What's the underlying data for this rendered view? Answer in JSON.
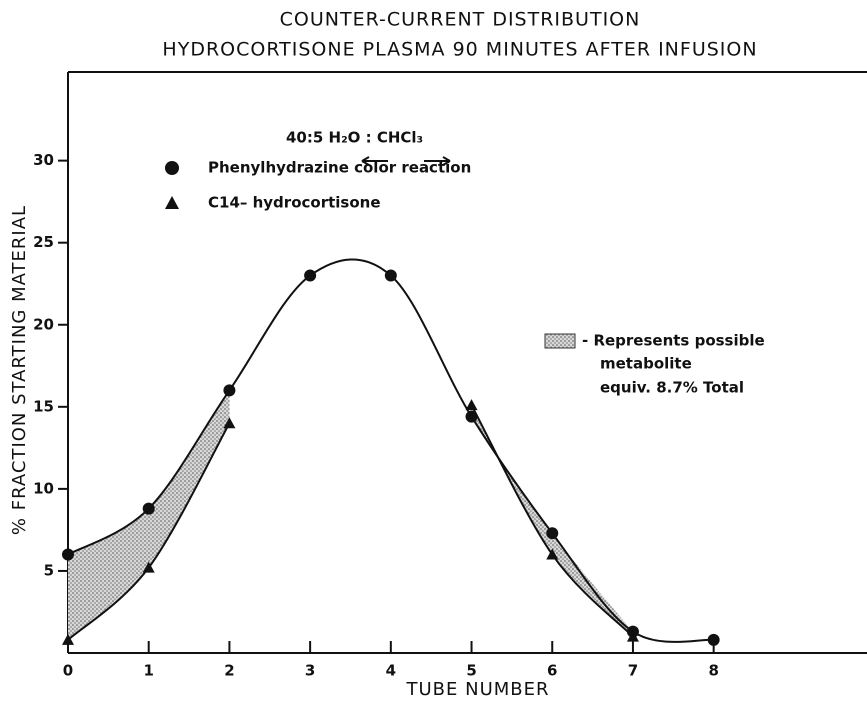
{
  "chart_data": {
    "type": "line",
    "title": "COUNTER-CURRENT DISTRIBUTION",
    "subtitle": "HYDROCORTISONE PLASMA 90 MINUTES AFTER INFUSION",
    "x_label": "TUBE NUMBER",
    "y_label": "% FRACTION STARTING MATERIAL",
    "x": [
      0,
      1,
      2,
      3,
      4,
      5,
      6,
      7,
      8
    ],
    "series": [
      {
        "name": "Phenylhydrazine color reaction",
        "marker": "circle",
        "color": "#111111",
        "values": [
          6,
          8.8,
          16,
          23,
          23,
          14.4,
          7.3,
          1.3,
          0.8
        ]
      },
      {
        "name": "C14– hydrocortisone",
        "marker": "triangle",
        "color": "#111111",
        "values": [
          0.8,
          5.2,
          14,
          null,
          null,
          15.1,
          6,
          1,
          null
        ]
      }
    ],
    "annotations": [
      "40:5  H₂O : CHCl₃",
      "- Represents possible",
      "metabolite",
      "equiv. 8.7% Total"
    ],
    "xlim": [
      0,
      9.9
    ],
    "ylim": [
      0,
      35.4
    ],
    "xticks": [
      0,
      1,
      2,
      3,
      4,
      5,
      6,
      7,
      8
    ],
    "yticks": [
      5,
      10,
      15,
      20,
      25,
      30
    ],
    "grid": false
  }
}
